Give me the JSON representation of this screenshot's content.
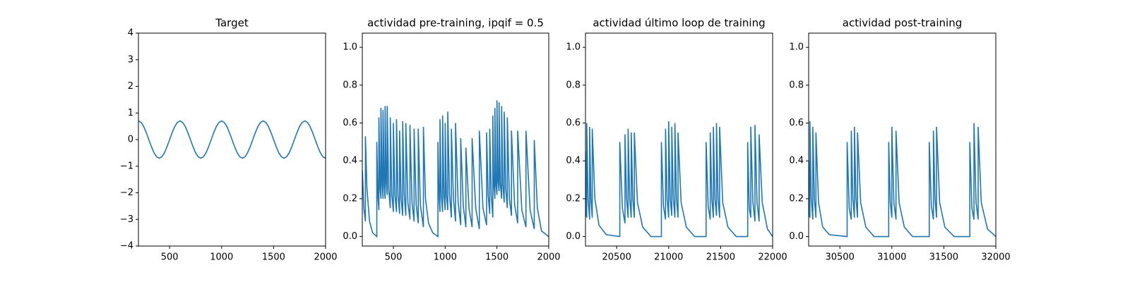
{
  "chart_data": [
    {
      "type": "line",
      "title": "Target",
      "color": "#1f77b4",
      "x": [
        200,
        225,
        250,
        275,
        300,
        325,
        350,
        375,
        400,
        425,
        450,
        475,
        500,
        525,
        550,
        575,
        600,
        625,
        650,
        675,
        700,
        725,
        750,
        775,
        800,
        825,
        850,
        875,
        900,
        925,
        950,
        975,
        1000,
        1025,
        1050,
        1075,
        1100,
        1125,
        1150,
        1175,
        1200,
        1225,
        1250,
        1275,
        1300,
        1325,
        1350,
        1375,
        1400,
        1425,
        1450,
        1475,
        1500,
        1525,
        1550,
        1575,
        1600,
        1625,
        1650,
        1675,
        1700,
        1725,
        1750,
        1775,
        1800,
        1825,
        1850,
        1875,
        1900,
        1925,
        1950,
        1975,
        2000
      ],
      "values": [
        0.7,
        0.647,
        0.495,
        0.268,
        0,
        -0.268,
        -0.495,
        -0.647,
        -0.7,
        -0.647,
        -0.495,
        -0.268,
        0,
        0.268,
        0.495,
        0.647,
        0.7,
        0.647,
        0.495,
        0.268,
        0,
        -0.268,
        -0.495,
        -0.647,
        -0.7,
        -0.647,
        -0.495,
        -0.268,
        0,
        0.268,
        0.495,
        0.647,
        0.7,
        0.647,
        0.495,
        0.268,
        0,
        -0.268,
        -0.495,
        -0.647,
        -0.7,
        -0.647,
        -0.495,
        -0.268,
        0,
        0.268,
        0.495,
        0.647,
        0.7,
        0.647,
        0.495,
        0.268,
        0,
        -0.268,
        -0.495,
        -0.647,
        -0.7,
        -0.647,
        -0.495,
        -0.268,
        0,
        0.268,
        0.495,
        0.647,
        0.7,
        0.647,
        0.495,
        0.268,
        0,
        -0.268,
        -0.495,
        -0.647,
        -0.7
      ],
      "xlim": [
        200,
        2000
      ],
      "xticks": [
        500,
        1000,
        1500,
        2000
      ],
      "ylim": [
        -4,
        4
      ],
      "yticks": [
        {
          "value": -4,
          "label": "−4"
        },
        {
          "value": -3,
          "label": "−3"
        },
        {
          "value": -2,
          "label": "−2"
        },
        {
          "value": -1,
          "label": "−1"
        },
        0,
        1,
        2,
        3,
        4
      ]
    },
    {
      "type": "line",
      "title": "actividad pre-training, ipqif = 0.5",
      "color": "#1f77b4",
      "x": [
        200,
        215,
        230,
        230,
        245,
        270,
        300,
        340,
        340,
        352,
        360,
        360,
        372,
        380,
        380,
        392,
        400,
        400,
        412,
        420,
        420,
        432,
        440,
        440,
        455,
        470,
        470,
        485,
        500,
        500,
        515,
        530,
        530,
        545,
        560,
        560,
        575,
        590,
        590,
        605,
        620,
        620,
        640,
        660,
        660,
        680,
        700,
        700,
        720,
        740,
        740,
        760,
        790,
        790,
        810,
        840,
        880,
        930,
        930,
        942,
        950,
        950,
        962,
        975,
        975,
        988,
        1000,
        1000,
        1012,
        1025,
        1025,
        1042,
        1060,
        1060,
        1080,
        1100,
        1100,
        1125,
        1150,
        1150,
        1175,
        1200,
        1200,
        1230,
        1260,
        1260,
        1295,
        1330,
        1330,
        1365,
        1400,
        1400,
        1415,
        1430,
        1430,
        1445,
        1460,
        1460,
        1470,
        1480,
        1480,
        1490,
        1500,
        1500,
        1510,
        1520,
        1520,
        1532,
        1545,
        1545,
        1557,
        1570,
        1570,
        1585,
        1600,
        1600,
        1620,
        1640,
        1640,
        1670,
        1700,
        1700,
        1740,
        1780,
        1780,
        1820,
        1860,
        1860,
        1890,
        1930,
        2000
      ],
      "values": [
        0.35,
        0.15,
        0.08,
        0.53,
        0.25,
        0.08,
        0.02,
        0.0,
        0.5,
        0.2,
        0.14,
        0.63,
        0.25,
        0.2,
        0.68,
        0.27,
        0.2,
        0.67,
        0.27,
        0.2,
        0.69,
        0.28,
        0.22,
        0.69,
        0.25,
        0.15,
        0.63,
        0.22,
        0.13,
        0.6,
        0.22,
        0.13,
        0.62,
        0.22,
        0.12,
        0.56,
        0.2,
        0.11,
        0.61,
        0.22,
        0.11,
        0.6,
        0.18,
        0.09,
        0.59,
        0.18,
        0.08,
        0.57,
        0.17,
        0.07,
        0.57,
        0.17,
        0.05,
        0.58,
        0.2,
        0.07,
        0.02,
        0.0,
        0.5,
        0.2,
        0.13,
        0.62,
        0.22,
        0.13,
        0.64,
        0.22,
        0.14,
        0.6,
        0.22,
        0.14,
        0.66,
        0.22,
        0.1,
        0.57,
        0.2,
        0.08,
        0.6,
        0.18,
        0.06,
        0.52,
        0.16,
        0.05,
        0.47,
        0.15,
        0.05,
        0.52,
        0.15,
        0.04,
        0.56,
        0.15,
        0.06,
        0.55,
        0.22,
        0.12,
        0.57,
        0.22,
        0.1,
        0.64,
        0.27,
        0.2,
        0.68,
        0.28,
        0.22,
        0.72,
        0.3,
        0.24,
        0.71,
        0.28,
        0.2,
        0.69,
        0.27,
        0.18,
        0.66,
        0.25,
        0.15,
        0.63,
        0.2,
        0.11,
        0.56,
        0.17,
        0.07,
        0.56,
        0.14,
        0.05,
        0.56,
        0.14,
        0.04,
        0.51,
        0.15,
        0.03,
        0.0
      ],
      "xlim": [
        200,
        2000
      ],
      "xticks": [
        500,
        1000,
        1500,
        2000
      ],
      "ylim": [
        -0.05,
        1.075
      ],
      "yticks": [
        {
          "value": 0,
          "label": "0.0"
        },
        0.2,
        0.4,
        0.6,
        0.8,
        {
          "value": 1,
          "label": "1.0"
        }
      ]
    },
    {
      "type": "line",
      "title": "actividad último loop de training",
      "color": "#1f77b4",
      "x": [
        20200,
        20207,
        20212,
        20212,
        20225,
        20240,
        20240,
        20252,
        20265,
        20265,
        20290,
        20330,
        20400,
        20530,
        20530,
        20555,
        20580,
        20580,
        20595,
        20610,
        20610,
        20625,
        20640,
        20640,
        20655,
        20670,
        20670,
        20700,
        20750,
        20830,
        20930,
        20930,
        20950,
        20970,
        20970,
        20985,
        21000,
        21000,
        21015,
        21030,
        21030,
        21045,
        21060,
        21060,
        21075,
        21090,
        21090,
        21120,
        21170,
        21250,
        21360,
        21360,
        21380,
        21400,
        21400,
        21415,
        21430,
        21430,
        21445,
        21460,
        21460,
        21475,
        21490,
        21490,
        21520,
        21570,
        21650,
        21760,
        21760,
        21775,
        21790,
        21790,
        21810,
        21830,
        21830,
        21850,
        21870,
        21870,
        21900,
        21950,
        22000
      ],
      "values": [
        0.45,
        0.12,
        0.1,
        0.6,
        0.2,
        0.09,
        0.58,
        0.2,
        0.1,
        0.57,
        0.2,
        0.06,
        0.01,
        0.0,
        0.5,
        0.15,
        0.07,
        0.54,
        0.2,
        0.1,
        0.57,
        0.2,
        0.1,
        0.55,
        0.2,
        0.1,
        0.55,
        0.18,
        0.05,
        0.0,
        0.0,
        0.5,
        0.16,
        0.09,
        0.57,
        0.2,
        0.1,
        0.61,
        0.2,
        0.11,
        0.58,
        0.2,
        0.1,
        0.6,
        0.2,
        0.1,
        0.55,
        0.18,
        0.05,
        0.0,
        0.0,
        0.5,
        0.16,
        0.09,
        0.55,
        0.2,
        0.1,
        0.58,
        0.2,
        0.11,
        0.6,
        0.2,
        0.1,
        0.58,
        0.18,
        0.05,
        0.0,
        0.0,
        0.5,
        0.15,
        0.1,
        0.58,
        0.18,
        0.08,
        0.59,
        0.18,
        0.08,
        0.54,
        0.18,
        0.04,
        0.0
      ],
      "xlim": [
        20200,
        22000
      ],
      "xticks": [
        20500,
        21000,
        21500,
        22000
      ],
      "ylim": [
        -0.05,
        1.075
      ],
      "yticks": [
        {
          "value": 0,
          "label": "0.0"
        },
        0.2,
        0.4,
        0.6,
        0.8,
        {
          "value": 1,
          "label": "1.0"
        }
      ]
    },
    {
      "type": "line",
      "title": "actividad post-training",
      "color": "#1f77b4",
      "x": [
        30200,
        30207,
        30212,
        30212,
        30225,
        30240,
        30240,
        30255,
        30270,
        30270,
        30295,
        30335,
        30400,
        30570,
        30570,
        30590,
        30610,
        30610,
        30625,
        30640,
        30640,
        30655,
        30670,
        30670,
        30700,
        30750,
        30830,
        30970,
        30970,
        30985,
        31000,
        31000,
        31020,
        31040,
        31040,
        31070,
        31120,
        31200,
        31360,
        31360,
        31380,
        31400,
        31400,
        31415,
        31430,
        31430,
        31460,
        31510,
        31600,
        31750,
        31750,
        31770,
        31790,
        31790,
        31810,
        31830,
        31830,
        31860,
        31920,
        32000
      ],
      "values": [
        0.4,
        0.12,
        0.1,
        0.61,
        0.2,
        0.09,
        0.58,
        0.2,
        0.1,
        0.55,
        0.18,
        0.05,
        0.01,
        0.0,
        0.5,
        0.15,
        0.09,
        0.56,
        0.2,
        0.1,
        0.58,
        0.2,
        0.1,
        0.55,
        0.18,
        0.05,
        0.0,
        0.0,
        0.5,
        0.18,
        0.1,
        0.58,
        0.18,
        0.09,
        0.56,
        0.18,
        0.05,
        0.0,
        0.0,
        0.5,
        0.16,
        0.09,
        0.56,
        0.2,
        0.1,
        0.58,
        0.18,
        0.05,
        0.0,
        0.0,
        0.5,
        0.15,
        0.09,
        0.6,
        0.18,
        0.09,
        0.58,
        0.18,
        0.04,
        0.0
      ],
      "xlim": [
        30200,
        32000
      ],
      "xticks": [
        30500,
        31000,
        31500,
        32000
      ],
      "ylim": [
        -0.05,
        1.075
      ],
      "yticks": [
        {
          "value": 0,
          "label": "0.0"
        },
        0.2,
        0.4,
        0.6,
        0.8,
        {
          "value": 1,
          "label": "1.0"
        }
      ]
    }
  ]
}
